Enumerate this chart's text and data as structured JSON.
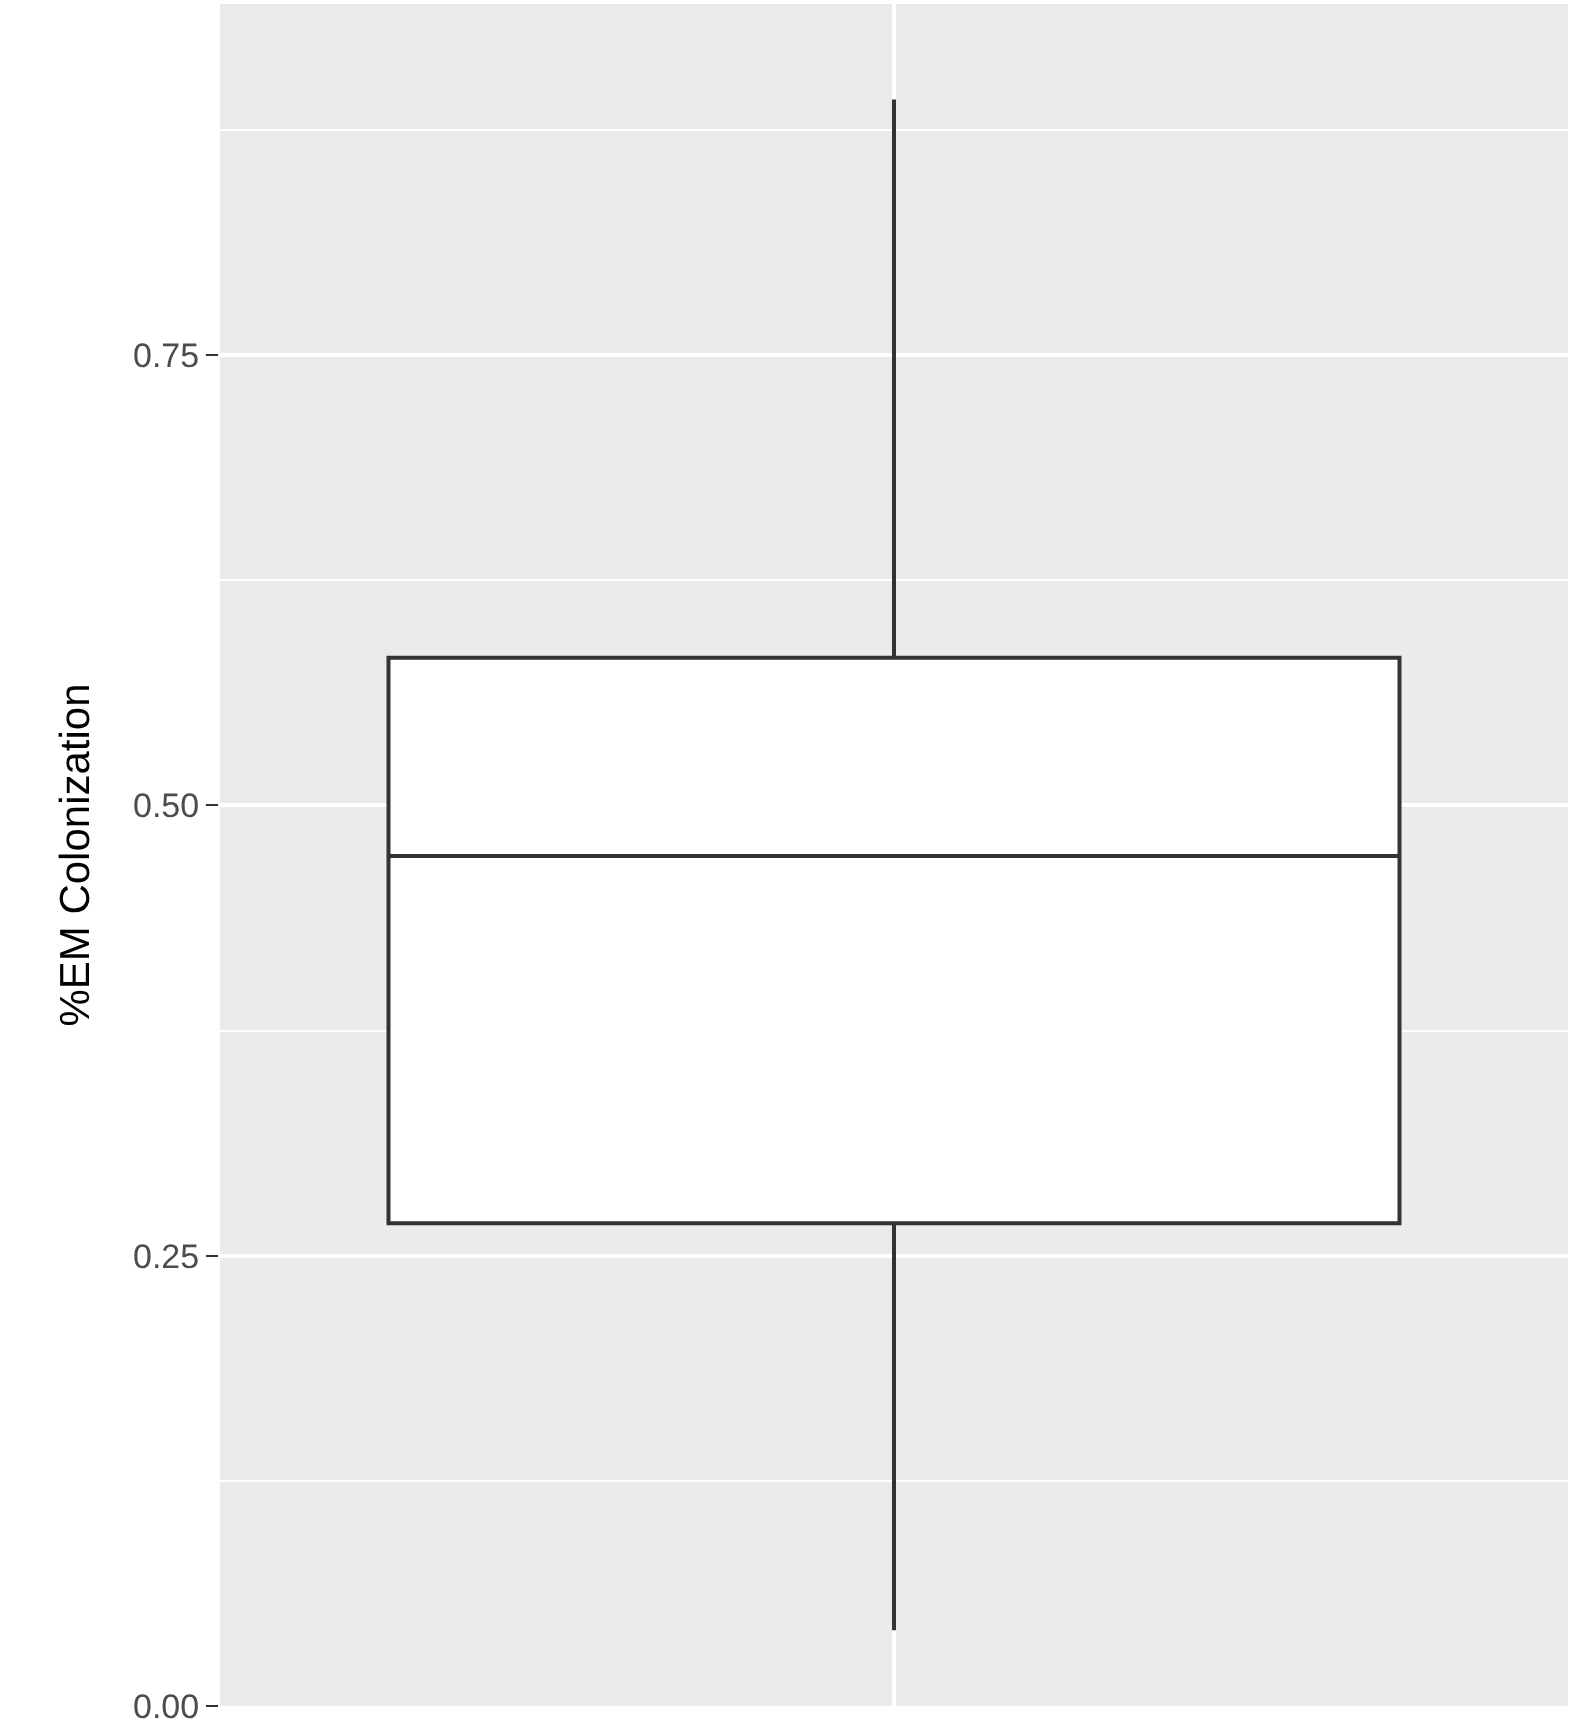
{
  "chart_data": {
    "type": "box",
    "ylabel": "%EM Colonization",
    "categories": [
      null
    ],
    "boxes": [
      {
        "low": 0.042,
        "q1": 0.268,
        "median": 0.472,
        "q3": 0.582,
        "high": 0.892
      }
    ],
    "color": "#333333",
    "ylim": [
      0,
      0.945
    ],
    "yticks": [
      {
        "value": 0,
        "label": "0.00"
      },
      {
        "value": 0.25,
        "label": "0.25"
      },
      {
        "value": 0.5,
        "label": "0.50"
      },
      {
        "value": 0.75,
        "label": "0.75"
      }
    ],
    "grid": true,
    "tick_labels": "y"
  }
}
